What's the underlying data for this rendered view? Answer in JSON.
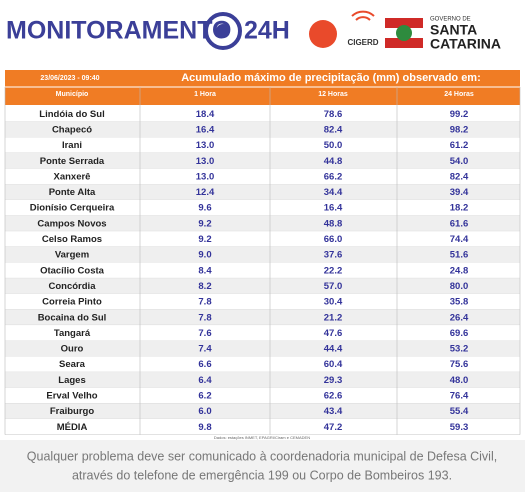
{
  "header": {
    "title": "MONITORAMENTO",
    "title_suffix": "24H",
    "logo_cigerd": "CIGERD",
    "logo_gov": "GOVERNO DE",
    "logo_state_1": "SANTA",
    "logo_state_2": "CATARINA"
  },
  "table": {
    "date": "23/06/2023 - 09:40",
    "caption": "Acumulado máximo de precipitação (mm) observado em:",
    "columns": [
      "Município",
      "1 Hora",
      "12 Horas",
      "24 Horas"
    ],
    "rows": [
      [
        "Lindóia do Sul",
        "18.4",
        "78.6",
        "99.2"
      ],
      [
        "Chapecó",
        "16.4",
        "82.4",
        "98.2"
      ],
      [
        "Irani",
        "13.0",
        "50.0",
        "61.2"
      ],
      [
        "Ponte Serrada",
        "13.0",
        "44.8",
        "54.0"
      ],
      [
        "Xanxerê",
        "13.0",
        "66.2",
        "82.4"
      ],
      [
        "Ponte Alta",
        "12.4",
        "34.4",
        "39.4"
      ],
      [
        "Dionísio Cerqueira",
        "9.6",
        "16.4",
        "18.2"
      ],
      [
        "Campos Novos",
        "9.2",
        "48.8",
        "61.6"
      ],
      [
        "Celso Ramos",
        "9.2",
        "66.0",
        "74.4"
      ],
      [
        "Vargem",
        "9.0",
        "37.6",
        "51.6"
      ],
      [
        "Otacílio Costa",
        "8.4",
        "22.2",
        "24.8"
      ],
      [
        "Concórdia",
        "8.2",
        "57.0",
        "80.0"
      ],
      [
        "Correia Pinto",
        "7.8",
        "30.4",
        "35.8"
      ],
      [
        "Bocaina do Sul",
        "7.8",
        "21.2",
        "26.4"
      ],
      [
        "Tangará",
        "7.6",
        "47.6",
        "69.6"
      ],
      [
        "Ouro",
        "7.4",
        "44.4",
        "53.2"
      ],
      [
        "Seara",
        "6.6",
        "60.4",
        "75.6"
      ],
      [
        "Lages",
        "6.4",
        "29.3",
        "48.0"
      ],
      [
        "Erval Velho",
        "6.2",
        "62.6",
        "76.4"
      ],
      [
        "Fraiburgo",
        "6.0",
        "43.4",
        "55.4"
      ],
      [
        "MÉDIA",
        "9.8",
        "47.2",
        "59.3"
      ]
    ],
    "source": "Dados: estações INMET, EPAGRI/Ciram e CEMADEN"
  },
  "footer": {
    "line1": "Qualquer problema deve ser comunicado à coordenadoria municipal de Defesa Civil,",
    "line2": "através do telefone de emergência 199 ou Corpo de Bombeiros 193."
  }
}
